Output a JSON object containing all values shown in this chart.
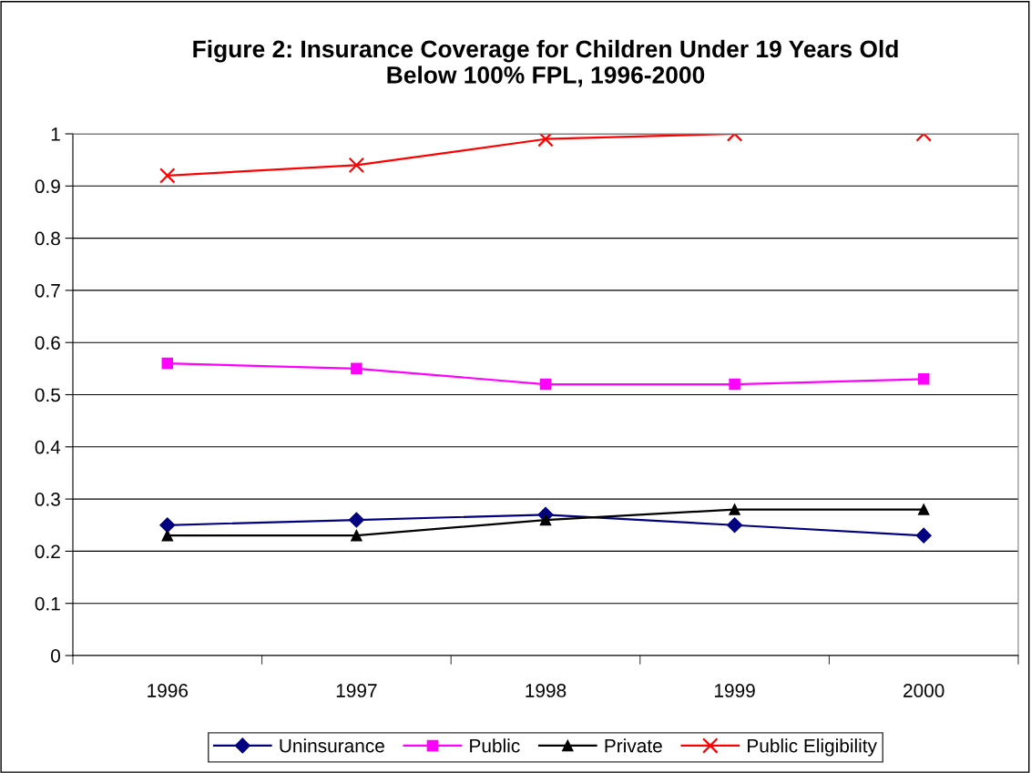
{
  "chart_data": {
    "type": "line",
    "title": "Figure 2: Insurance Coverage for Children Under 19 Years Old\nBelow 100% FPL, 1996-2000",
    "categories": [
      "1996",
      "1997",
      "1998",
      "1999",
      "2000"
    ],
    "series": [
      {
        "name": "Uninsurance",
        "color": "#000080",
        "marker": "diamond",
        "values": [
          0.25,
          0.26,
          0.27,
          0.25,
          0.23
        ]
      },
      {
        "name": "Public",
        "color": "#ff00ff",
        "marker": "square",
        "values": [
          0.56,
          0.55,
          0.52,
          0.52,
          0.53
        ]
      },
      {
        "name": "Private",
        "color": "#000000",
        "marker": "triangle",
        "values": [
          0.23,
          0.23,
          0.26,
          0.28,
          0.28
        ]
      },
      {
        "name": "Public Eligibility",
        "color": "#ff0000",
        "marker": "cross",
        "values": [
          0.92,
          0.94,
          0.99,
          1.0,
          1.0
        ]
      }
    ],
    "ylim": [
      0,
      1
    ],
    "yticks": [
      0,
      0.1,
      0.2,
      0.3,
      0.4,
      0.5,
      0.6,
      0.7,
      0.8,
      0.9,
      1
    ],
    "grid": "y",
    "legend": "bottom",
    "line_style": "solid"
  }
}
